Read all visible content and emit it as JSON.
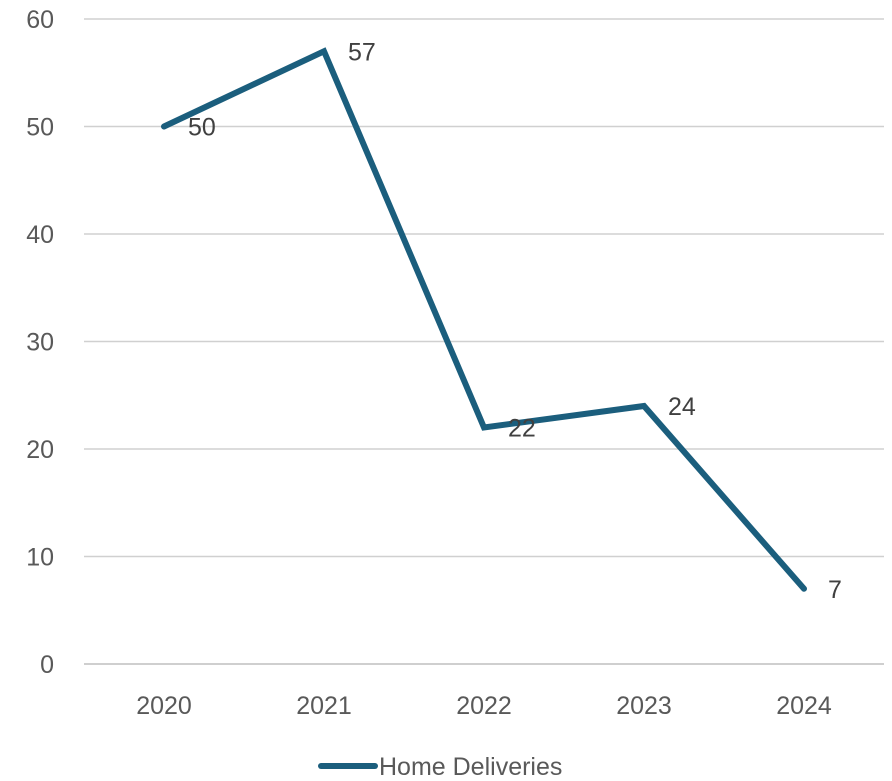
{
  "chart_data": {
    "type": "line",
    "categories": [
      "2020",
      "2021",
      "2022",
      "2023",
      "2024"
    ],
    "series": [
      {
        "name": "Home Deliveries",
        "values": [
          50,
          57,
          22,
          24,
          7
        ],
        "color": "#1b5e7d"
      }
    ],
    "ylim": [
      0,
      60
    ],
    "yticks": [
      "0",
      "10",
      "20",
      "30",
      "40",
      "50",
      "60"
    ],
    "data_labels": [
      "50",
      "57",
      "22",
      "24",
      "7"
    ],
    "grid": true,
    "legend": "bottom"
  }
}
